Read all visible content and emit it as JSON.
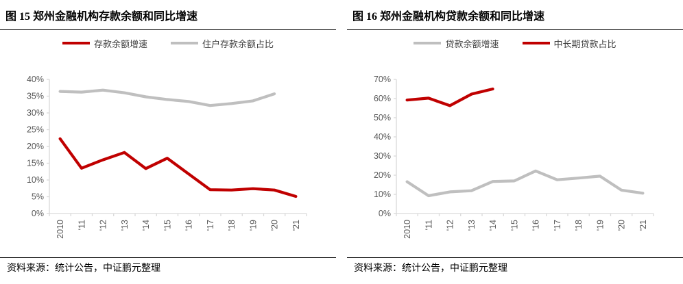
{
  "colors": {
    "red": "#C00000",
    "gray": "#BFBFBF",
    "axis_line": "#D9D9D9",
    "axis_text": "#595959",
    "rule": "#000000"
  },
  "panels": [
    {
      "title": "图 15  郑州金融机构存款余额和同比增速",
      "source": "资料来源：统计公告，中证鹏元整理",
      "legend": [
        {
          "label": "存款余额增速",
          "color": "red"
        },
        {
          "label": "住户存款余额占比",
          "color": "gray"
        }
      ],
      "chart_data": {
        "type": "line",
        "categories": [
          "2010",
          "'11",
          "'12",
          "'13",
          "'14",
          "'15",
          "'16",
          "'17",
          "'18",
          "'19",
          "'20",
          "'21"
        ],
        "ylim": [
          0,
          40
        ],
        "ystep": 5,
        "ytick_suffix": "%",
        "grid": false,
        "legend_position": "top",
        "series": [
          {
            "name": "存款余额增速",
            "color": "red",
            "values": [
              22.3,
              13.5,
              16.0,
              18.2,
              13.4,
              16.5,
              11.8,
              7.1,
              7.0,
              7.4,
              7.0,
              5.1
            ]
          },
          {
            "name": "住户存款余额占比",
            "color": "gray",
            "values": [
              36.4,
              36.2,
              36.8,
              36.0,
              34.8,
              34.0,
              33.4,
              32.2,
              32.8,
              33.6,
              35.7,
              null
            ]
          }
        ]
      }
    },
    {
      "title": "图 16  郑州金融机构贷款余额和同比增速",
      "source": "资料来源：统计公告，中证鹏元整理",
      "legend": [
        {
          "label": "贷款余额增速",
          "color": "gray"
        },
        {
          "label": "中长期贷款占比",
          "color": "red"
        }
      ],
      "chart_data": {
        "type": "line",
        "categories": [
          "2010",
          "'11",
          "'12",
          "'13",
          "'14",
          "'15",
          "'16",
          "'17",
          "'18",
          "'19",
          "'20",
          "'21"
        ],
        "ylim": [
          0,
          70
        ],
        "ystep": 10,
        "ytick_suffix": "%",
        "grid": false,
        "legend_position": "top",
        "series": [
          {
            "name": "贷款余额增速",
            "color": "gray",
            "values": [
              16.6,
              9.3,
              11.3,
              11.9,
              16.7,
              17.0,
              22.2,
              17.6,
              18.5,
              19.5,
              12.2,
              10.6
            ]
          },
          {
            "name": "中长期贷款占比",
            "color": "red",
            "values": [
              59.2,
              60.2,
              56.3,
              62.3,
              65.0,
              null,
              null,
              null,
              null,
              null,
              null,
              null
            ]
          }
        ]
      }
    }
  ]
}
